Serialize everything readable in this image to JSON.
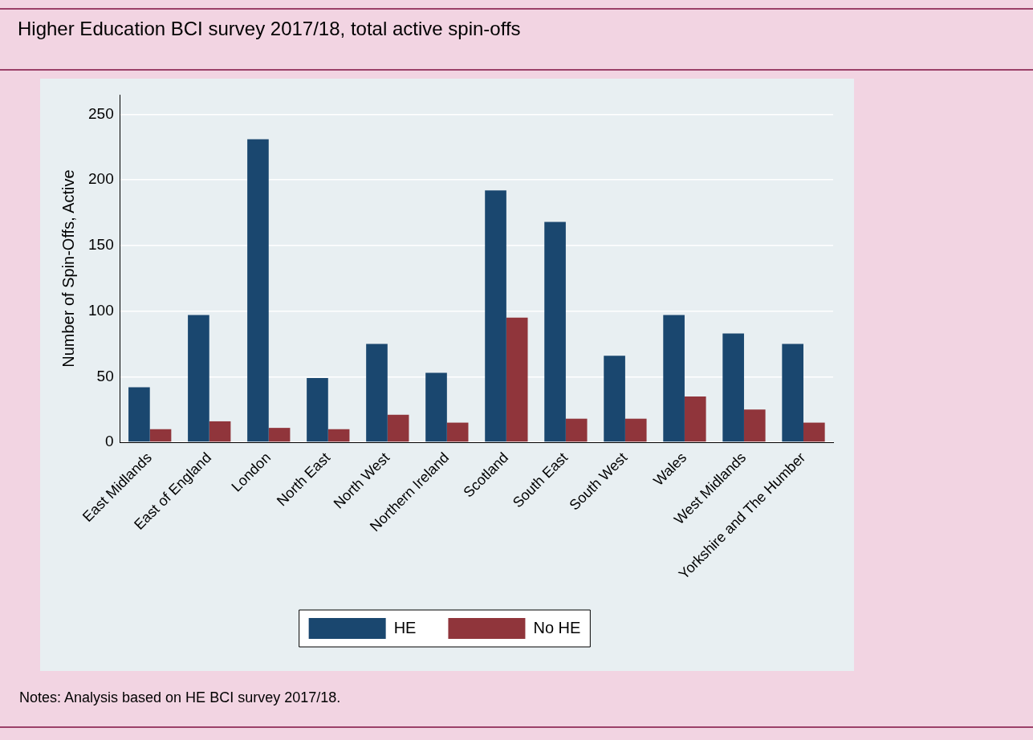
{
  "chart_data": {
    "type": "bar",
    "title": "Higher Education BCI survey 2017/18, total active spin-offs",
    "ylabel": "Number of Spin-Offs, Active",
    "categories": [
      "East Midlands",
      "East of England",
      "London",
      "North East",
      "North West",
      "Northern Ireland",
      "Scotland",
      "South East",
      "South West",
      "Wales",
      "West Midlands",
      "Yorkshire and The Humber"
    ],
    "series": [
      {
        "name": "HE",
        "color": "#1a476f",
        "values": [
          42,
          97,
          231,
          49,
          75,
          53,
          192,
          168,
          66,
          97,
          83,
          75
        ]
      },
      {
        "name": "No HE",
        "color": "#90353b",
        "values": [
          10,
          16,
          11,
          10,
          21,
          15,
          95,
          18,
          18,
          35,
          25,
          15
        ]
      }
    ],
    "ylim": [
      0,
      265
    ],
    "yticks": [
      0,
      50,
      100,
      150,
      200,
      250
    ],
    "grid": "y",
    "legend": "bottom",
    "annotations": [
      "Notes: Analysis based on HE BCI survey 2017/18."
    ]
  }
}
